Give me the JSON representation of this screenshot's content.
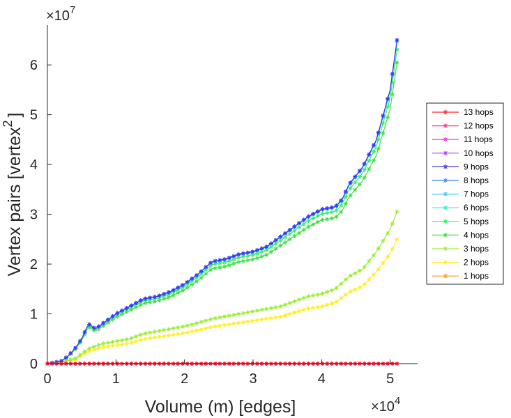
{
  "chart_data": {
    "type": "line",
    "title": "",
    "xlabel": "Volume (m) [edges]",
    "ylabel": "Vertex pairs [vertex",
    "ylabel_superscript": "2",
    "ylabel_close": "]",
    "x_exponent_label": "×10",
    "x_exponent_power": "4",
    "y_exponent_label": "×10",
    "y_exponent_power": "7",
    "xlim": [
      0,
      5.4
    ],
    "ylim": [
      0,
      6.8
    ],
    "x_unit_note": "x in units of 10^4 edges, y in units of 10^7 vertex pairs",
    "x_ticks": [
      0,
      1,
      2,
      3,
      4,
      5
    ],
    "x_tick_labels": [
      "0",
      "1",
      "2",
      "3",
      "4",
      "5"
    ],
    "y_ticks": [
      0,
      1,
      2,
      3,
      4,
      5,
      6
    ],
    "y_tick_labels": [
      "0",
      "1",
      "2",
      "3",
      "4",
      "5",
      "6"
    ],
    "grid": false,
    "legend_position": "right",
    "marker": "asterisk",
    "series": [
      {
        "name": "13 hops",
        "color": "#ff2020",
        "group": "flat"
      },
      {
        "name": "12 hops",
        "color": "#ff3399",
        "group": "flat"
      },
      {
        "name": "11 hops",
        "color": "#ee33ee",
        "group": "flat"
      },
      {
        "name": "10 hops",
        "color": "#aa44ee",
        "group": "flat"
      },
      {
        "name": "9 hops",
        "color": "#4433ee",
        "group": "upper",
        "scale": 1.0
      },
      {
        "name": "8 hops",
        "color": "#3388ff",
        "group": "upper",
        "scale": 1.0
      },
      {
        "name": "7 hops",
        "color": "#33ccee",
        "group": "upper",
        "scale": 1.0
      },
      {
        "name": "6 hops",
        "color": "#33eecc",
        "group": "upper",
        "scale": 0.995
      },
      {
        "name": "5 hops",
        "color": "#33ee66",
        "group": "upper",
        "scale": 0.97
      },
      {
        "name": "4 hops",
        "color": "#44dd44",
        "group": "upper",
        "scale": 0.93
      },
      {
        "name": "3 hops",
        "color": "#99ee33",
        "group": "lower",
        "scale": 1.0
      },
      {
        "name": "2 hops",
        "color": "#ffee22",
        "group": "lower",
        "scale": 0.82
      },
      {
        "name": "1 hops",
        "color": "#ff9922",
        "group": "flat"
      }
    ],
    "upper_curve": {
      "x": [
        0,
        0.2,
        0.3,
        0.4,
        0.5,
        0.6,
        0.7,
        0.8,
        1.0,
        1.2,
        1.4,
        1.6,
        1.8,
        2.0,
        2.2,
        2.4,
        2.6,
        2.8,
        3.0,
        3.2,
        3.4,
        3.6,
        3.8,
        4.0,
        4.2,
        4.3,
        4.4,
        4.6,
        4.8,
        5.0,
        5.1
      ],
      "y": [
        0,
        0.05,
        0.15,
        0.3,
        0.5,
        0.8,
        0.7,
        0.8,
        1.0,
        1.15,
        1.3,
        1.35,
        1.45,
        1.6,
        1.8,
        2.05,
        2.1,
        2.2,
        2.25,
        2.35,
        2.55,
        2.75,
        2.95,
        3.1,
        3.15,
        3.3,
        3.6,
        3.95,
        4.5,
        5.5,
        6.5
      ]
    },
    "lower_curve": {
      "x": [
        0,
        0.2,
        0.4,
        0.5,
        0.6,
        0.8,
        1.0,
        1.2,
        1.4,
        1.6,
        1.8,
        2.0,
        2.2,
        2.4,
        2.6,
        2.8,
        3.0,
        3.2,
        3.4,
        3.6,
        3.8,
        4.0,
        4.2,
        4.4,
        4.6,
        4.8,
        5.0,
        5.1
      ],
      "y": [
        0,
        0.03,
        0.1,
        0.2,
        0.3,
        0.4,
        0.45,
        0.5,
        0.6,
        0.65,
        0.7,
        0.75,
        0.82,
        0.9,
        0.95,
        1.0,
        1.05,
        1.1,
        1.15,
        1.25,
        1.35,
        1.4,
        1.5,
        1.75,
        1.9,
        2.25,
        2.7,
        3.05
      ]
    }
  }
}
